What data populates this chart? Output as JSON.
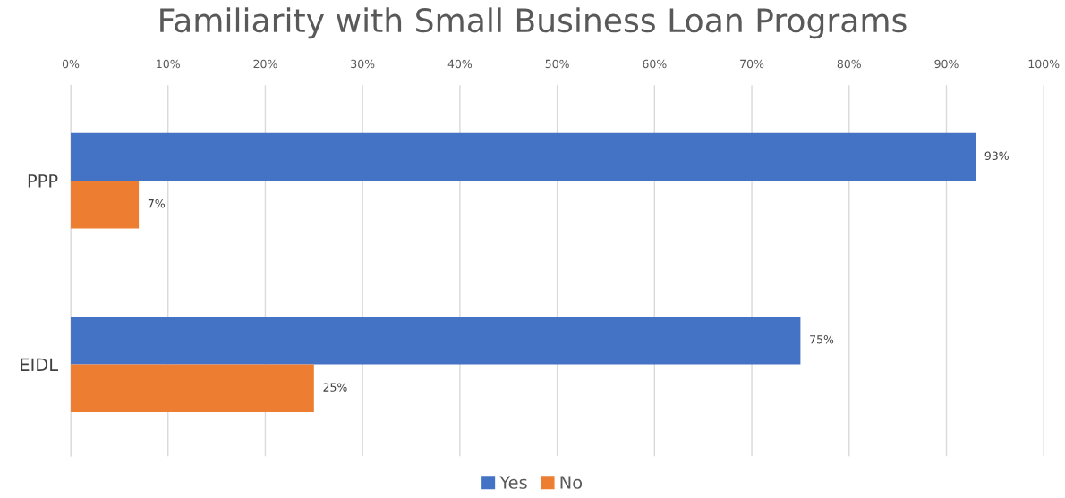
{
  "chart_data": {
    "type": "bar",
    "orientation": "horizontal",
    "title": "Familiarity with Small Business Loan Programs",
    "categories": [
      "PPP",
      "EIDL"
    ],
    "series": [
      {
        "name": "Yes",
        "color": "#4472c4",
        "values": [
          93,
          75
        ],
        "value_labels": [
          "93%",
          "75%"
        ]
      },
      {
        "name": "No",
        "color": "#ed7d31",
        "values": [
          7,
          25
        ],
        "value_labels": [
          "7%",
          "25%"
        ]
      }
    ],
    "xlim": [
      0,
      100
    ],
    "xticks": [
      {
        "value": 0,
        "label": "0%"
      },
      {
        "value": 10,
        "label": "10%"
      },
      {
        "value": 20,
        "label": "20%"
      },
      {
        "value": 30,
        "label": "30%"
      },
      {
        "value": 40,
        "label": "40%"
      },
      {
        "value": 50,
        "label": "50%"
      },
      {
        "value": 60,
        "label": "60%"
      },
      {
        "value": 70,
        "label": "70%"
      },
      {
        "value": 80,
        "label": "80%"
      },
      {
        "value": 90,
        "label": "90%"
      },
      {
        "value": 100,
        "label": "100%"
      }
    ],
    "grid": "x",
    "legend": "bottom"
  }
}
